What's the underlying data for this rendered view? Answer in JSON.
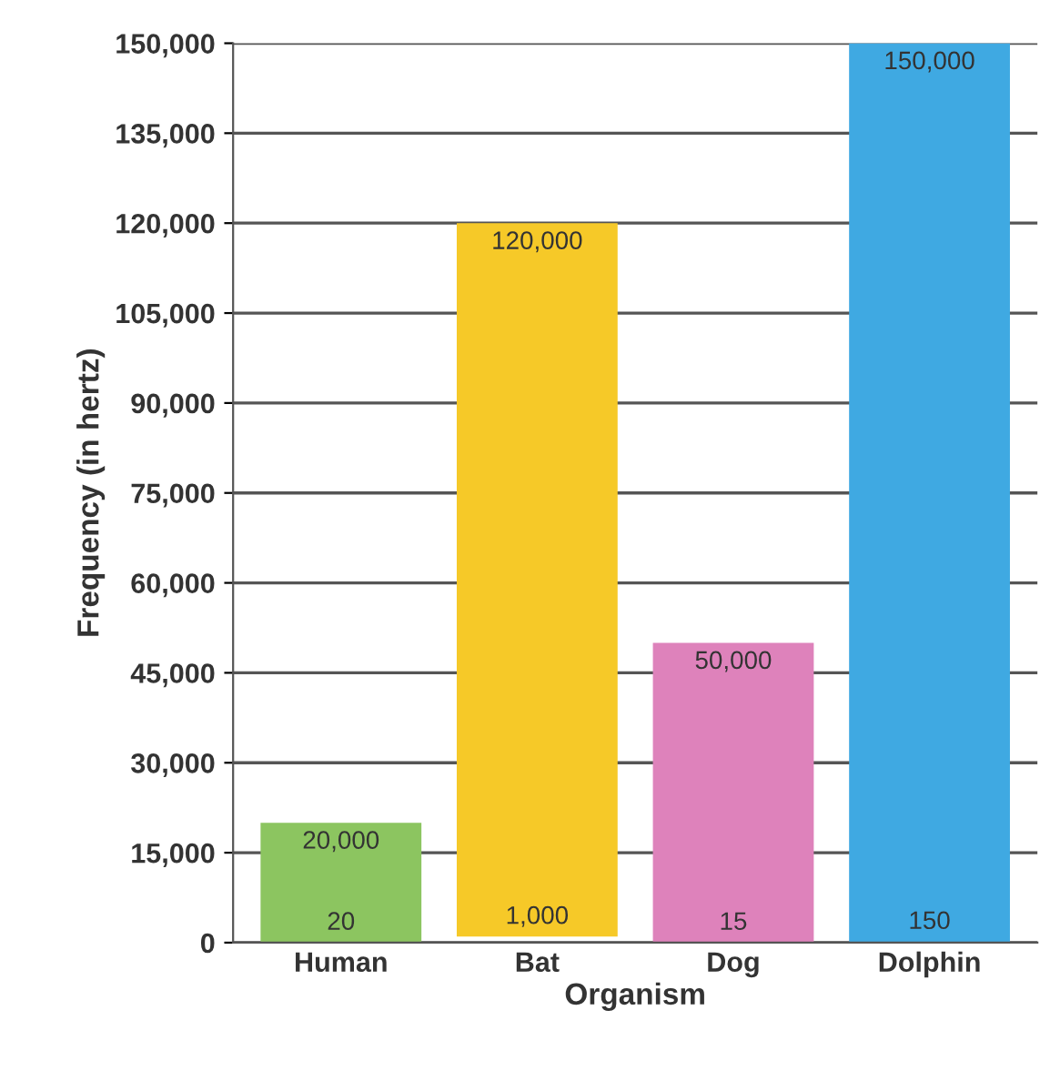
{
  "chart_data": {
    "type": "bar",
    "xlabel": "Organism",
    "ylabel": "Frequency (in hertz)",
    "categories": [
      "Human",
      "Bat",
      "Dog",
      "Dolphin"
    ],
    "base": [
      20,
      1000,
      15,
      150
    ],
    "values": [
      19980,
      119000,
      49985,
      149850
    ],
    "colors": [
      "#8cc560",
      "#f6c928",
      "#de82bb",
      "#3fa9e2"
    ],
    "ylim": [
      0,
      150000
    ],
    "yticks": [
      {
        "value": 0,
        "label": "0"
      },
      {
        "value": 15000,
        "label": "15,000"
      },
      {
        "value": 30000,
        "label": "30,000"
      },
      {
        "value": 45000,
        "label": "45,000"
      },
      {
        "value": 60000,
        "label": "60,000"
      },
      {
        "value": 75000,
        "label": "75,000"
      },
      {
        "value": 90000,
        "label": "90,000"
      },
      {
        "value": 105000,
        "label": "105,000"
      },
      {
        "value": 120000,
        "label": "120,000"
      },
      {
        "value": 135000,
        "label": "135,000"
      },
      {
        "value": 150000,
        "label": "150,000"
      }
    ],
    "grid": "y",
    "annotations": [
      {
        "text": "20,000",
        "x": "Human",
        "y": 20000
      },
      {
        "text": "20",
        "x": "Human",
        "y": 20
      },
      {
        "text": "120,000",
        "x": "Bat",
        "y": 120000
      },
      {
        "text": "1,000",
        "x": "Bat",
        "y": 1000
      },
      {
        "text": "50,000",
        "x": "Dog",
        "y": 50000
      },
      {
        "text": "15",
        "x": "Dog",
        "y": 15
      },
      {
        "text": "150,000",
        "x": "Dolphin",
        "y": 150000
      },
      {
        "text": "150",
        "x": "Dolphin",
        "y": 150
      }
    ]
  }
}
